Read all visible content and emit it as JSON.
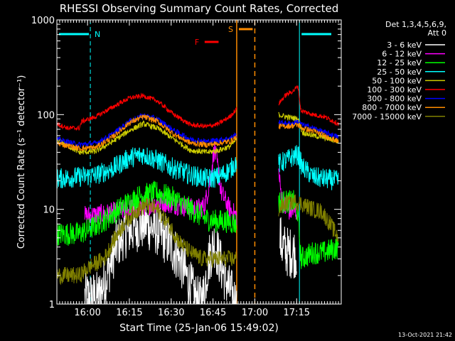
{
  "chart_data": {
    "type": "line",
    "title": "RHESSI Observing Summary Count Rates, Corrected",
    "xlabel": "Start Time (25-Jan-06 15:49:02)",
    "ylabel": "Corrected Count Rate (s⁻¹ detector⁻¹)",
    "yscale": "log",
    "ylim": [
      1,
      1000
    ],
    "xlim_minutes": [
      0,
      102
    ],
    "x_ticks": [
      {
        "label": "16:00",
        "minute": 11
      },
      {
        "label": "16:15",
        "minute": 26
      },
      {
        "label": "16:30",
        "minute": 41
      },
      {
        "label": "16:45",
        "minute": 56
      },
      {
        "label": "17:00",
        "minute": 71
      },
      {
        "label": "17:15",
        "minute": 86
      }
    ],
    "y_ticks": [
      {
        "label": "1",
        "value": 1
      },
      {
        "label": "10",
        "value": 10
      },
      {
        "label": "100",
        "value": 100
      },
      {
        "label": "1000",
        "value": 1000
      }
    ],
    "legend_title": [
      "Det 1,3,4,5,6,9,",
      "Att 0"
    ],
    "series": [
      {
        "name": "3 - 6 keV",
        "color": "#ffffff",
        "points": [
          [
            10,
            1.2
          ],
          [
            15,
            1.2
          ],
          [
            18,
            2.0
          ],
          [
            21,
            4.0
          ],
          [
            24,
            5.5
          ],
          [
            28,
            6.5
          ],
          [
            32,
            7.0
          ],
          [
            36,
            6.0
          ],
          [
            40,
            4.5
          ],
          [
            44,
            3.0
          ],
          [
            47,
            1.8
          ],
          [
            49,
            1.3
          ],
          [
            51,
            1.0
          ],
          [
            52.5,
            1.2
          ],
          [
            54.5,
            3.0
          ],
          [
            56.5,
            4.5
          ],
          [
            59,
            2.5
          ],
          [
            61.5,
            1.5
          ],
          [
            63,
            1.2
          ],
          [
            64.5,
            1.0
          ]
        ],
        "points2": [
          [
            80,
            5.0
          ],
          [
            81,
            4.0
          ],
          [
            83,
            3.5
          ],
          [
            86,
            3.5
          ]
        ]
      },
      {
        "name": "6 - 12 keV",
        "color": "#ff00ff",
        "points": [
          [
            10,
            8.5
          ],
          [
            18,
            9.0
          ],
          [
            26,
            10.0
          ],
          [
            32,
            11.0
          ],
          [
            38,
            12.0
          ],
          [
            44,
            11.0
          ],
          [
            50,
            10.0
          ],
          [
            53,
            11.0
          ],
          [
            55,
            20.0
          ],
          [
            56.5,
            45.0
          ],
          [
            57.5,
            30.0
          ],
          [
            59,
            15.0
          ],
          [
            62,
            10.0
          ],
          [
            64.5,
            8.5
          ]
        ],
        "points2": [
          [
            79.5,
            25.0
          ],
          [
            80.5,
            14.0
          ],
          [
            82,
            10.0
          ],
          [
            84,
            9.5
          ],
          [
            86,
            9.5
          ]
        ]
      },
      {
        "name": "12 - 25 keV",
        "color": "#00ff00",
        "points": [
          [
            0,
            5.5
          ],
          [
            8,
            5.5
          ],
          [
            13,
            6.5
          ],
          [
            18,
            8.0
          ],
          [
            24,
            11.0
          ],
          [
            30,
            14.0
          ],
          [
            36,
            15.0
          ],
          [
            42,
            13.0
          ],
          [
            48,
            10.0
          ],
          [
            53,
            8.0
          ],
          [
            57,
            7.5
          ],
          [
            61,
            7.5
          ],
          [
            64.5,
            7.0
          ]
        ],
        "points2": [
          [
            79.5,
            12.0
          ],
          [
            82,
            12.0
          ],
          [
            85,
            12.0
          ],
          [
            86.5,
            9.0
          ],
          [
            87.5,
            3.0
          ],
          [
            92,
            3.5
          ],
          [
            96,
            3.5
          ],
          [
            101,
            4.0
          ]
        ]
      },
      {
        "name": "25 - 50 keV",
        "color": "#00ffff",
        "points": [
          [
            0,
            21.0
          ],
          [
            8,
            22.0
          ],
          [
            14,
            23.0
          ],
          [
            20,
            27.0
          ],
          [
            26,
            35.0
          ],
          [
            31,
            38.0
          ],
          [
            36,
            33.0
          ],
          [
            42,
            27.0
          ],
          [
            48,
            23.0
          ],
          [
            54,
            21.0
          ],
          [
            58,
            22.0
          ],
          [
            62,
            26.0
          ],
          [
            64.5,
            32.0
          ]
        ],
        "points2": [
          [
            79.5,
            30.0
          ],
          [
            84,
            35.0
          ],
          [
            86.5,
            38.0
          ],
          [
            88,
            28.0
          ],
          [
            92,
            22.0
          ],
          [
            96,
            21.0
          ],
          [
            101,
            20.0
          ]
        ]
      },
      {
        "name": "50 - 100 keV",
        "color": "#cccc00",
        "points": [
          [
            0,
            55.0
          ],
          [
            8,
            40.0
          ],
          [
            14,
            41.0
          ],
          [
            20,
            52.0
          ],
          [
            26,
            68.0
          ],
          [
            31,
            80.0
          ],
          [
            36,
            72.0
          ],
          [
            42,
            55.0
          ],
          [
            48,
            42.0
          ],
          [
            54,
            40.0
          ],
          [
            58,
            42.0
          ],
          [
            62,
            46.0
          ],
          [
            64.5,
            55.0
          ]
        ],
        "points2": [
          [
            79.5,
            100.0
          ],
          [
            82,
            95.0
          ],
          [
            85,
            92.0
          ],
          [
            86.5,
            90.0
          ],
          [
            88,
            65.0
          ],
          [
            92,
            60.0
          ],
          [
            96,
            57.0
          ],
          [
            101,
            52.0
          ]
        ]
      },
      {
        "name": "100 - 300 keV",
        "color": "#ff0000",
        "points": [
          [
            0,
            80.0
          ],
          [
            4,
            72.0
          ],
          [
            8,
            72.0
          ],
          [
            9,
            85.0
          ],
          [
            14,
            95.0
          ],
          [
            20,
            120.0
          ],
          [
            26,
            150.0
          ],
          [
            31,
            158.0
          ],
          [
            36,
            140.0
          ],
          [
            42,
            100.0
          ],
          [
            48,
            78.0
          ],
          [
            54,
            75.0
          ],
          [
            58,
            80.0
          ],
          [
            62,
            95.0
          ],
          [
            64.5,
            115.0
          ]
        ],
        "points2": [
          [
            79.5,
            130.0
          ],
          [
            82,
            160.0
          ],
          [
            85,
            180.0
          ],
          [
            86.5,
            200.0
          ],
          [
            87.5,
            110.0
          ],
          [
            92,
            100.0
          ],
          [
            96,
            95.0
          ],
          [
            101,
            80.0
          ]
        ]
      },
      {
        "name": "300 - 800 keV",
        "color": "#0000ff",
        "points": [
          [
            0,
            55.0
          ],
          [
            8,
            48.0
          ],
          [
            14,
            50.0
          ],
          [
            20,
            62.0
          ],
          [
            26,
            85.0
          ],
          [
            31,
            98.0
          ],
          [
            36,
            90.0
          ],
          [
            42,
            68.0
          ],
          [
            48,
            55.0
          ],
          [
            54,
            52.0
          ],
          [
            58,
            54.0
          ],
          [
            62,
            56.0
          ],
          [
            64.5,
            62.0
          ]
        ],
        "points2": [
          [
            79.5,
            82.0
          ],
          [
            84,
            80.0
          ],
          [
            86.5,
            85.0
          ],
          [
            88,
            78.0
          ],
          [
            92,
            72.0
          ],
          [
            96,
            65.0
          ],
          [
            101,
            58.0
          ]
        ]
      },
      {
        "name": "800 - 7000 keV",
        "color": "#ff8c00",
        "points": [
          [
            0,
            50.0
          ],
          [
            8,
            44.0
          ],
          [
            14,
            45.0
          ],
          [
            20,
            58.0
          ],
          [
            26,
            82.0
          ],
          [
            31,
            95.0
          ],
          [
            36,
            85.0
          ],
          [
            42,
            62.0
          ],
          [
            48,
            50.0
          ],
          [
            54,
            48.0
          ],
          [
            58,
            50.0
          ],
          [
            62,
            52.0
          ],
          [
            64.5,
            58.0
          ]
        ],
        "points2": [
          [
            79.5,
            75.0
          ],
          [
            84,
            76.0
          ],
          [
            86.5,
            78.0
          ],
          [
            88,
            72.0
          ],
          [
            92,
            67.0
          ],
          [
            96,
            60.0
          ],
          [
            101,
            52.0
          ]
        ]
      },
      {
        "name": "7000 - 15000 keV",
        "color": "#808000",
        "points": [
          [
            0,
            2.0
          ],
          [
            8,
            2.0
          ],
          [
            12,
            2.5
          ],
          [
            17,
            3.0
          ],
          [
            20,
            4.5
          ],
          [
            24,
            7.0
          ],
          [
            28,
            9.5
          ],
          [
            32,
            11.0
          ],
          [
            36,
            10.0
          ],
          [
            40,
            7.0
          ],
          [
            44,
            4.5
          ],
          [
            48,
            3.5
          ],
          [
            52,
            3.0
          ],
          [
            56,
            3.0
          ],
          [
            60,
            3.0
          ],
          [
            64.5,
            3.0
          ]
        ],
        "points2": [
          [
            79.5,
            10.0
          ],
          [
            82,
            11.5
          ],
          [
            84,
            12.0
          ],
          [
            86,
            12.0
          ],
          [
            89,
            11.0
          ],
          [
            92,
            10.0
          ],
          [
            95,
            9.5
          ],
          [
            98,
            7.0
          ],
          [
            101,
            5.0
          ]
        ]
      }
    ],
    "annotations": {
      "night_label": "N",
      "saa_label": "S",
      "flare_label": "F",
      "night_intervals": [
        [
          0,
          12
        ],
        [
          87,
          103
        ]
      ],
      "saa_interval": [
        64.5,
        71
      ],
      "flare_interval": [
        53,
        58
      ]
    },
    "footer_date": "13-Oct-2021 21:42"
  }
}
